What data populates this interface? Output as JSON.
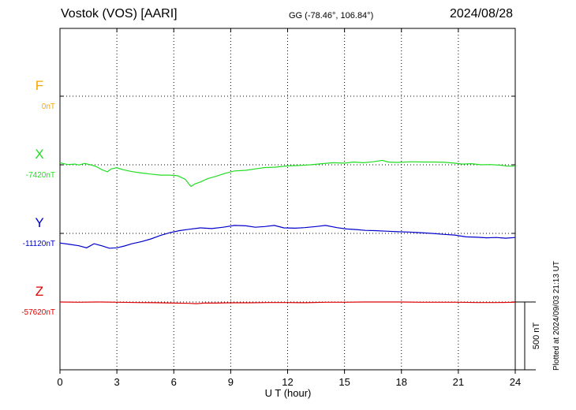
{
  "header": {
    "station": "Vostok (VOS)  [AARI]",
    "coords": "GG (-78.46°, 106.84°)",
    "date": "2024/08/28"
  },
  "footer_note": "Plotted at 2024/09/03 21:13 UT",
  "chart_data": {
    "type": "line",
    "xlabel": "U T (hour)",
    "xlim": [
      0,
      24
    ],
    "xticks": [
      "0",
      "3",
      "6",
      "9",
      "12",
      "15",
      "18",
      "21",
      "24"
    ],
    "scale_bar_label": "500 nT",
    "series": [
      {
        "name": "F",
        "offset_label": "0nT",
        "color": "#f5a800",
        "baseline_nT": 0,
        "values": []
      },
      {
        "name": "X",
        "offset_label": "-7420nT",
        "color": "#22dd22",
        "baseline_nT": -7420,
        "points": [
          [
            0,
            -7405
          ],
          [
            0.4,
            -7418
          ],
          [
            0.8,
            -7415
          ],
          [
            1.0,
            -7422
          ],
          [
            1.3,
            -7410
          ],
          [
            1.6,
            -7420
          ],
          [
            1.9,
            -7432
          ],
          [
            2.2,
            -7455
          ],
          [
            2.5,
            -7472
          ],
          [
            2.7,
            -7450
          ],
          [
            3.0,
            -7442
          ],
          [
            3.3,
            -7455
          ],
          [
            3.8,
            -7470
          ],
          [
            4.3,
            -7480
          ],
          [
            4.8,
            -7488
          ],
          [
            5.3,
            -7495
          ],
          [
            5.8,
            -7495
          ],
          [
            6.2,
            -7500
          ],
          [
            6.6,
            -7525
          ],
          [
            6.9,
            -7578
          ],
          [
            7.1,
            -7560
          ],
          [
            7.4,
            -7545
          ],
          [
            7.8,
            -7520
          ],
          [
            8.2,
            -7505
          ],
          [
            8.7,
            -7482
          ],
          [
            9.2,
            -7465
          ],
          [
            9.8,
            -7460
          ],
          [
            10.3,
            -7450
          ],
          [
            10.8,
            -7440
          ],
          [
            11.3,
            -7438
          ],
          [
            12.0,
            -7428
          ],
          [
            12.6,
            -7425
          ],
          [
            13.2,
            -7420
          ],
          [
            13.8,
            -7412
          ],
          [
            14.4,
            -7405
          ],
          [
            15.0,
            -7408
          ],
          [
            15.5,
            -7400
          ],
          [
            16.0,
            -7405
          ],
          [
            16.5,
            -7398
          ],
          [
            17.0,
            -7388
          ],
          [
            17.3,
            -7400
          ],
          [
            17.8,
            -7403
          ],
          [
            18.5,
            -7398
          ],
          [
            19.2,
            -7400
          ],
          [
            19.8,
            -7400
          ],
          [
            20.3,
            -7402
          ],
          [
            20.8,
            -7408
          ],
          [
            21.2,
            -7415
          ],
          [
            21.7,
            -7412
          ],
          [
            22.2,
            -7420
          ],
          [
            22.7,
            -7418
          ],
          [
            23.2,
            -7423
          ],
          [
            23.6,
            -7430
          ],
          [
            24.0,
            -7430
          ]
        ]
      },
      {
        "name": "Y",
        "offset_label": "-11120nT",
        "color": "#0000cc",
        "baseline_nT": -11120,
        "points": [
          [
            0,
            -11190
          ],
          [
            0.5,
            -11200
          ],
          [
            1.0,
            -11210
          ],
          [
            1.4,
            -11225
          ],
          [
            1.8,
            -11195
          ],
          [
            2.2,
            -11210
          ],
          [
            2.6,
            -11228
          ],
          [
            3.0,
            -11225
          ],
          [
            3.4,
            -11212
          ],
          [
            3.8,
            -11195
          ],
          [
            4.3,
            -11180
          ],
          [
            4.8,
            -11160
          ],
          [
            5.3,
            -11135
          ],
          [
            5.8,
            -11115
          ],
          [
            6.3,
            -11100
          ],
          [
            6.8,
            -11090
          ],
          [
            7.4,
            -11080
          ],
          [
            8.0,
            -11085
          ],
          [
            8.6,
            -11075
          ],
          [
            9.2,
            -11062
          ],
          [
            9.8,
            -11065
          ],
          [
            10.3,
            -11075
          ],
          [
            10.8,
            -11070
          ],
          [
            11.3,
            -11062
          ],
          [
            11.8,
            -11080
          ],
          [
            12.4,
            -11082
          ],
          [
            12.9,
            -11078
          ],
          [
            13.5,
            -11070
          ],
          [
            14.0,
            -11062
          ],
          [
            14.6,
            -11078
          ],
          [
            15.1,
            -11088
          ],
          [
            15.6,
            -11092
          ],
          [
            16.1,
            -11098
          ],
          [
            16.6,
            -11100
          ],
          [
            17.2,
            -11104
          ],
          [
            17.8,
            -11108
          ],
          [
            18.4,
            -11110
          ],
          [
            19.0,
            -11115
          ],
          [
            19.6,
            -11120
          ],
          [
            20.2,
            -11127
          ],
          [
            20.8,
            -11132
          ],
          [
            21.4,
            -11145
          ],
          [
            22.0,
            -11148
          ],
          [
            22.5,
            -11152
          ],
          [
            23.0,
            -11150
          ],
          [
            23.5,
            -11155
          ],
          [
            24.0,
            -11150
          ]
        ]
      },
      {
        "name": "Z",
        "offset_label": "-57620nT",
        "color": "#dd0000",
        "baseline_nT": -57620,
        "points": [
          [
            0,
            -57620
          ],
          [
            1.0,
            -57622
          ],
          [
            2.0,
            -57620
          ],
          [
            3.0,
            -57622
          ],
          [
            4.0,
            -57624
          ],
          [
            5.0,
            -57625
          ],
          [
            6.0,
            -57628
          ],
          [
            6.8,
            -57630
          ],
          [
            7.2,
            -57632
          ],
          [
            7.6,
            -57628
          ],
          [
            8.2,
            -57628
          ],
          [
            9.0,
            -57626
          ],
          [
            10.0,
            -57626
          ],
          [
            11.0,
            -57624
          ],
          [
            12.0,
            -57624
          ],
          [
            13.0,
            -57625
          ],
          [
            14.0,
            -57622
          ],
          [
            15.0,
            -57622
          ],
          [
            16.0,
            -57620
          ],
          [
            17.0,
            -57620
          ],
          [
            18.0,
            -57620
          ],
          [
            19.0,
            -57622
          ],
          [
            20.0,
            -57622
          ],
          [
            21.0,
            -57622
          ],
          [
            22.0,
            -57624
          ],
          [
            23.0,
            -57624
          ],
          [
            24.0,
            -57622
          ]
        ]
      }
    ]
  }
}
